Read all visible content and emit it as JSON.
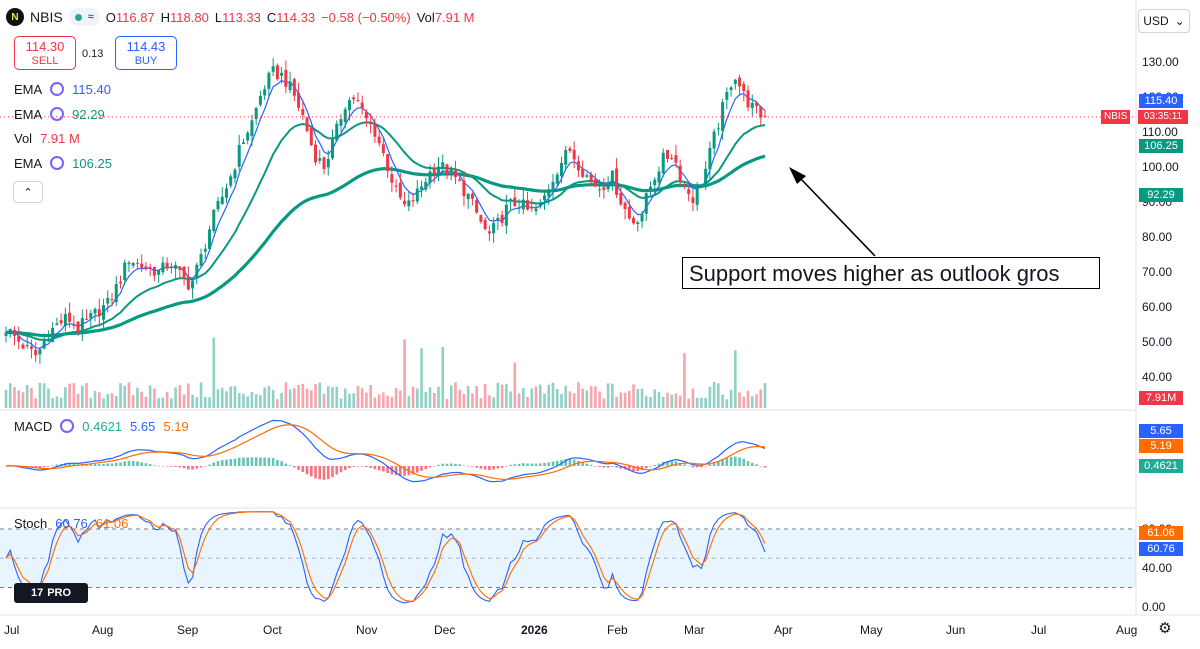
{
  "header": {
    "logo_text": "N",
    "symbol": "NBIS",
    "wave": "≈",
    "open_label": "O",
    "open": "116.87",
    "high_label": "H",
    "high": "118.80",
    "low_label": "L",
    "low": "113.33",
    "close_label": "C",
    "close": "114.33",
    "change": "−0.58 (−0.50%)",
    "vol_label": "Vol",
    "vol": "7.91 M"
  },
  "trade": {
    "sell_price": "114.30",
    "sell_label": "SELL",
    "spread": "0.13",
    "buy_price": "114.43",
    "buy_label": "BUY"
  },
  "indicators": {
    "ema1": {
      "label": "EMA",
      "value": "115.40",
      "color": "#2962ff"
    },
    "ema2": {
      "label": "EMA",
      "value": "92.29",
      "color": "#089981"
    },
    "vol": {
      "label": "Vol",
      "value": "7.91 M"
    },
    "ema3": {
      "label": "EMA",
      "value": "106.25",
      "color": "#089981"
    },
    "macd": {
      "label": "MACD",
      "hist": "0.4621",
      "macd": "5.65",
      "signal": "5.19"
    },
    "stoch": {
      "label": "Stoch",
      "k": "60.76",
      "d": "61.06"
    }
  },
  "currency": "USD",
  "price_axis": [
    "130.00",
    "120.00",
    "110.00",
    "100.00",
    "90.00",
    "80.00",
    "70.00",
    "60.00",
    "50.00",
    "40.00"
  ],
  "stoch_axis": [
    "80.00",
    "40.00",
    "0.00"
  ],
  "price_labels": {
    "ema1": "115.40",
    "last": "114.33",
    "ema3": "106.25",
    "ema2": "92.29",
    "vol": "7.91M",
    "macd": "5.65",
    "signal": "5.19",
    "hist": "0.4621",
    "stoch_d": "61.06",
    "stoch_k": "60.76"
  },
  "nbis_tag": "NBIS",
  "countdown": "03:35:11",
  "dates": [
    "Jul",
    "Aug",
    "Sep",
    "Oct",
    "Nov",
    "Dec",
    "2026",
    "Feb",
    "Mar",
    "Apr",
    "May",
    "Jun",
    "Jul",
    "Aug"
  ],
  "annotation": "Support moves higher as outlook gros",
  "tv_logo": "PRO",
  "colors": {
    "up": "#089981",
    "down": "#f23645",
    "ema_fast": "#2962ff",
    "ema_slow": "#089981",
    "signal": "#ff6d00"
  },
  "chart_data": {
    "type": "candlestick",
    "price_axis_range": [
      40,
      135
    ],
    "months": [
      "Jul",
      "Aug",
      "Sep",
      "Oct",
      "Nov",
      "Dec",
      "Jan",
      "Feb",
      "Mar"
    ],
    "close_path": [
      54,
      51,
      48,
      46,
      52,
      55,
      57,
      54,
      56,
      59,
      61,
      67,
      74,
      72,
      71,
      70,
      73,
      69,
      66,
      74,
      84,
      91,
      98,
      107,
      113,
      122,
      127,
      126,
      121,
      114,
      104,
      100,
      108,
      118,
      120,
      114,
      110,
      102,
      93,
      88,
      92,
      97,
      101,
      99,
      96,
      92,
      86,
      80,
      84,
      89,
      90,
      87,
      88,
      95,
      101,
      105,
      100,
      96,
      94,
      98,
      90,
      84,
      87,
      96,
      102,
      104,
      95,
      91,
      97,
      108,
      118,
      127,
      120,
      116,
      114
    ],
    "ema_fast_end": 115.4,
    "ema_mid_end": 106.25,
    "ema_slow_end": 92.29,
    "macd_end": {
      "macd": 5.65,
      "signal": 5.19,
      "hist": 0.4621
    },
    "stoch_end": {
      "k": 60.76,
      "d": 61.06
    }
  }
}
